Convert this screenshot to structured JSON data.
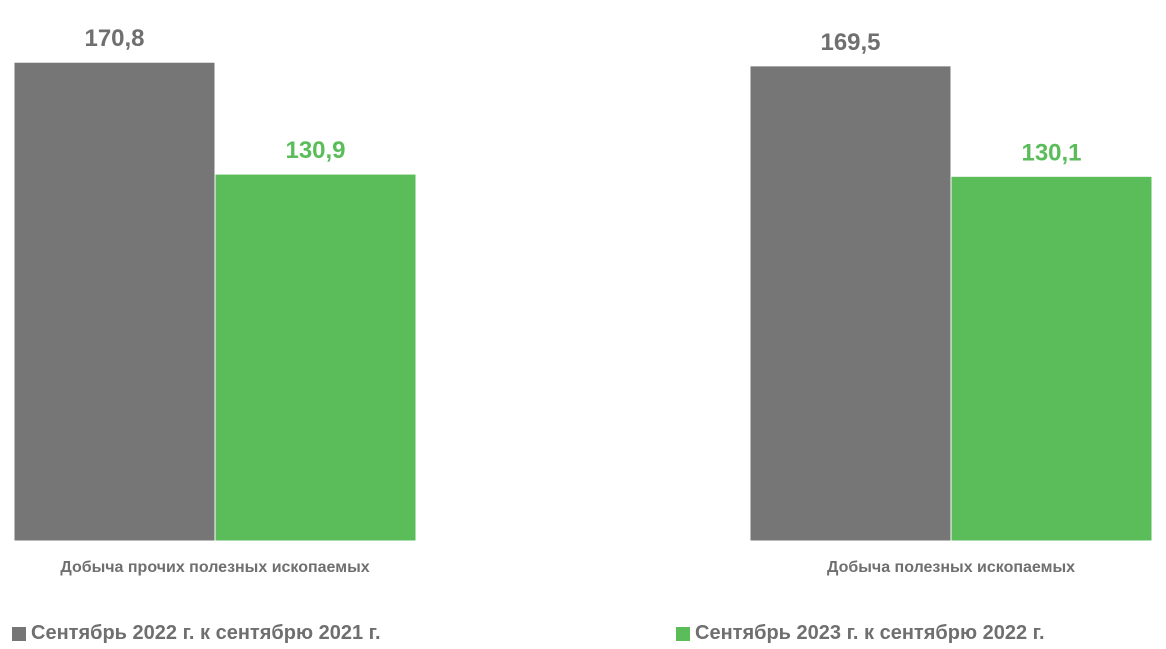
{
  "chart_data": {
    "type": "bar",
    "title": "",
    "xlabel": "",
    "ylabel": "",
    "categories": [
      "Добыча прочих полезных ископаемых",
      "Добыча полезных ископаемых"
    ],
    "series": [
      {
        "name": "Сентябрь 2022 г. к сентябрю 2021 г.",
        "values": [
          170.8,
          169.5
        ],
        "labels": [
          "170,8",
          "169,5"
        ],
        "color": "#767676"
      },
      {
        "name": "Сентябрь 2023 г. к сентябрю 2022 г.",
        "values": [
          130.9,
          130.1
        ],
        "labels": [
          "130,9",
          "130,1"
        ],
        "color": "#5abd5a"
      }
    ],
    "ylim": [
      0,
      193
    ],
    "grid": false,
    "legend": "bottom"
  },
  "colors": {
    "label_gray": "#6f6f6f",
    "label_green": "#5abd5a"
  }
}
